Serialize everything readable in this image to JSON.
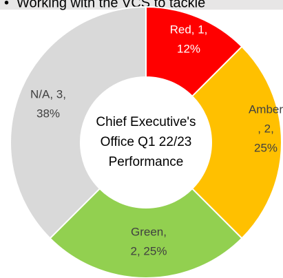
{
  "header_text": "Working with the VCS to tackle",
  "chart_data": {
    "type": "donut",
    "title": [
      "Chief Executive's",
      "Office Q1 22/23",
      "Performance"
    ],
    "categories": [
      "Red",
      "Amber",
      "Green",
      "N/A"
    ],
    "values": [
      1,
      2,
      2,
      3
    ],
    "value_labels": [
      [
        "Red, 1,",
        "12%"
      ],
      [
        "Amber",
        ", 2,",
        "25%"
      ],
      [
        "Green,",
        "2, 25%"
      ],
      [
        "N/A, 3,",
        "38%"
      ]
    ],
    "colors": [
      "#ff0000",
      "#ffc000",
      "#92d050",
      "#d9d9d9"
    ]
  }
}
